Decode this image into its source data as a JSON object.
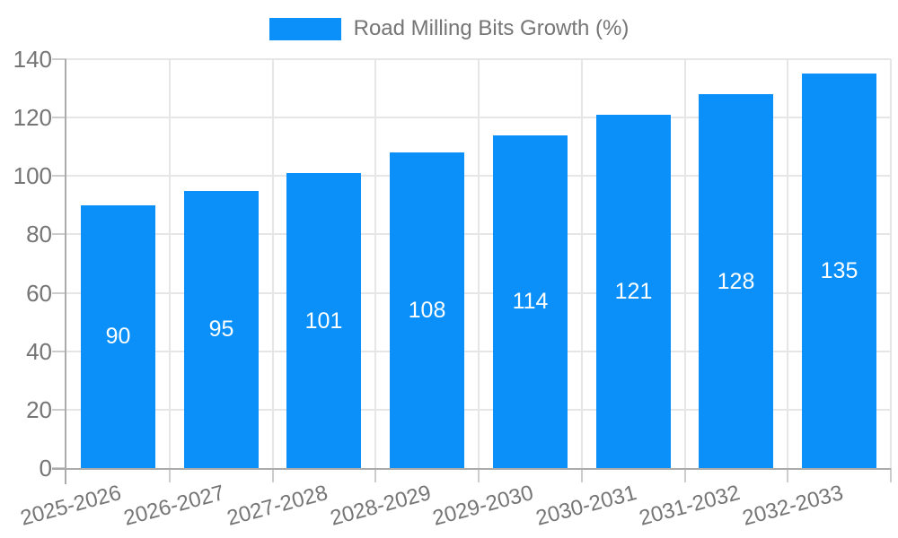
{
  "legend": {
    "label": "Road Milling Bits Growth (%)"
  },
  "chart_data": {
    "type": "bar",
    "title": "Road Milling Bits Growth (%)",
    "categories": [
      "2025-2026",
      "2026-2027",
      "2027-2028",
      "2028-2029",
      "2029-2030",
      "2030-2031",
      "2031-2032",
      "2032-2033"
    ],
    "values": [
      90,
      95,
      101,
      108,
      114,
      121,
      128,
      135
    ],
    "xlabel": "",
    "ylabel": "",
    "ylim": [
      0,
      140
    ],
    "yticks": [
      0,
      20,
      40,
      60,
      80,
      100,
      120,
      140
    ],
    "grid": true,
    "legend_position": "top",
    "bar_value_labels": true,
    "x_label_rotation_deg": -15
  },
  "colors": {
    "bar": "#0a90f8",
    "bar_label_text": "#ffffff",
    "axis_text": "#757575",
    "grid_line": "#e6e6e6",
    "tick_line": "#cccccc",
    "axis_line": "#ababab",
    "background": "#ffffff"
  }
}
